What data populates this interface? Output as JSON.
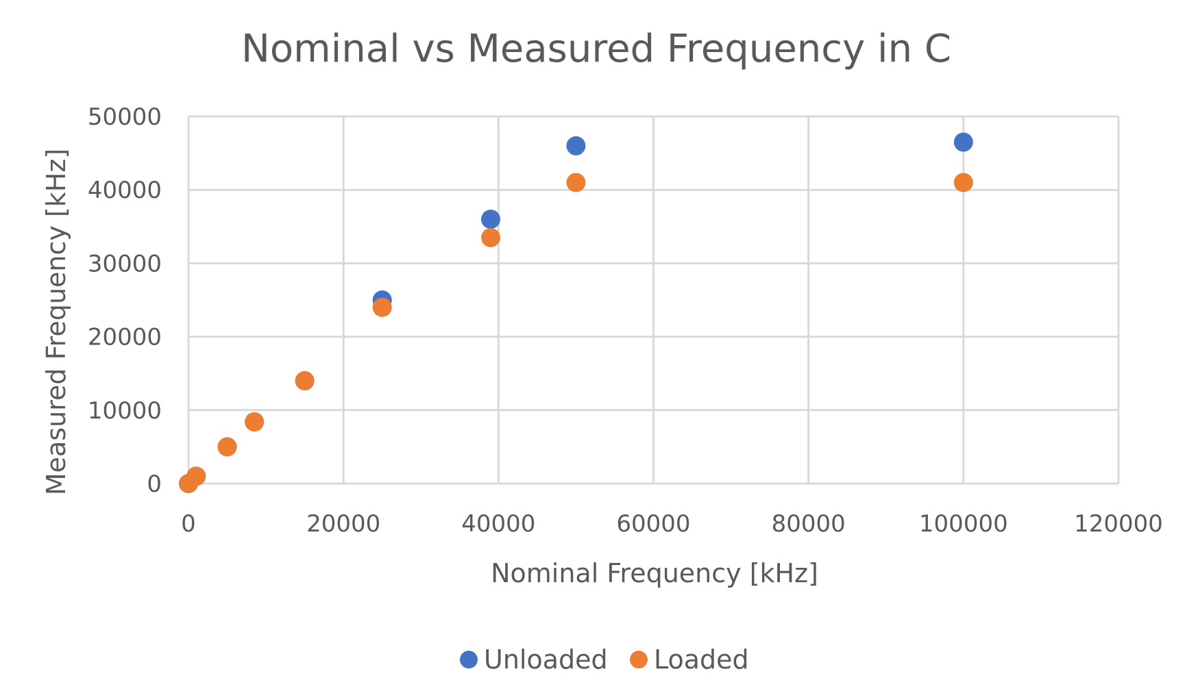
{
  "chart_data": {
    "type": "scatter",
    "title": "Nominal vs Measured Frequency in C",
    "xlabel": "Nominal Frequency [kHz]",
    "ylabel": "Measured Frequency [kHz]",
    "xlim": [
      0,
      120000
    ],
    "ylim": [
      0,
      50000
    ],
    "x_ticks": [
      "0",
      "20000",
      "40000",
      "60000",
      "80000",
      "100000",
      "120000"
    ],
    "y_ticks": [
      "0",
      "10000",
      "20000",
      "30000",
      "40000",
      "50000"
    ],
    "grid": true,
    "legend_position": "bottom",
    "series": [
      {
        "name": "Unloaded",
        "color": "#4472C4",
        "points": [
          [
            0,
            0
          ],
          [
            1000,
            1000
          ],
          [
            5000,
            5000
          ],
          [
            8500,
            8400
          ],
          [
            15000,
            14000
          ],
          [
            25000,
            25000
          ],
          [
            39000,
            36000
          ],
          [
            50000,
            46000
          ],
          [
            100000,
            46500
          ]
        ]
      },
      {
        "name": "Loaded",
        "color": "#ED7D31",
        "points": [
          [
            0,
            0
          ],
          [
            1000,
            1000
          ],
          [
            5000,
            5000
          ],
          [
            8500,
            8400
          ],
          [
            15000,
            14000
          ],
          [
            25000,
            24000
          ],
          [
            39000,
            33500
          ],
          [
            50000,
            41000
          ],
          [
            100000,
            41000
          ]
        ]
      }
    ]
  }
}
